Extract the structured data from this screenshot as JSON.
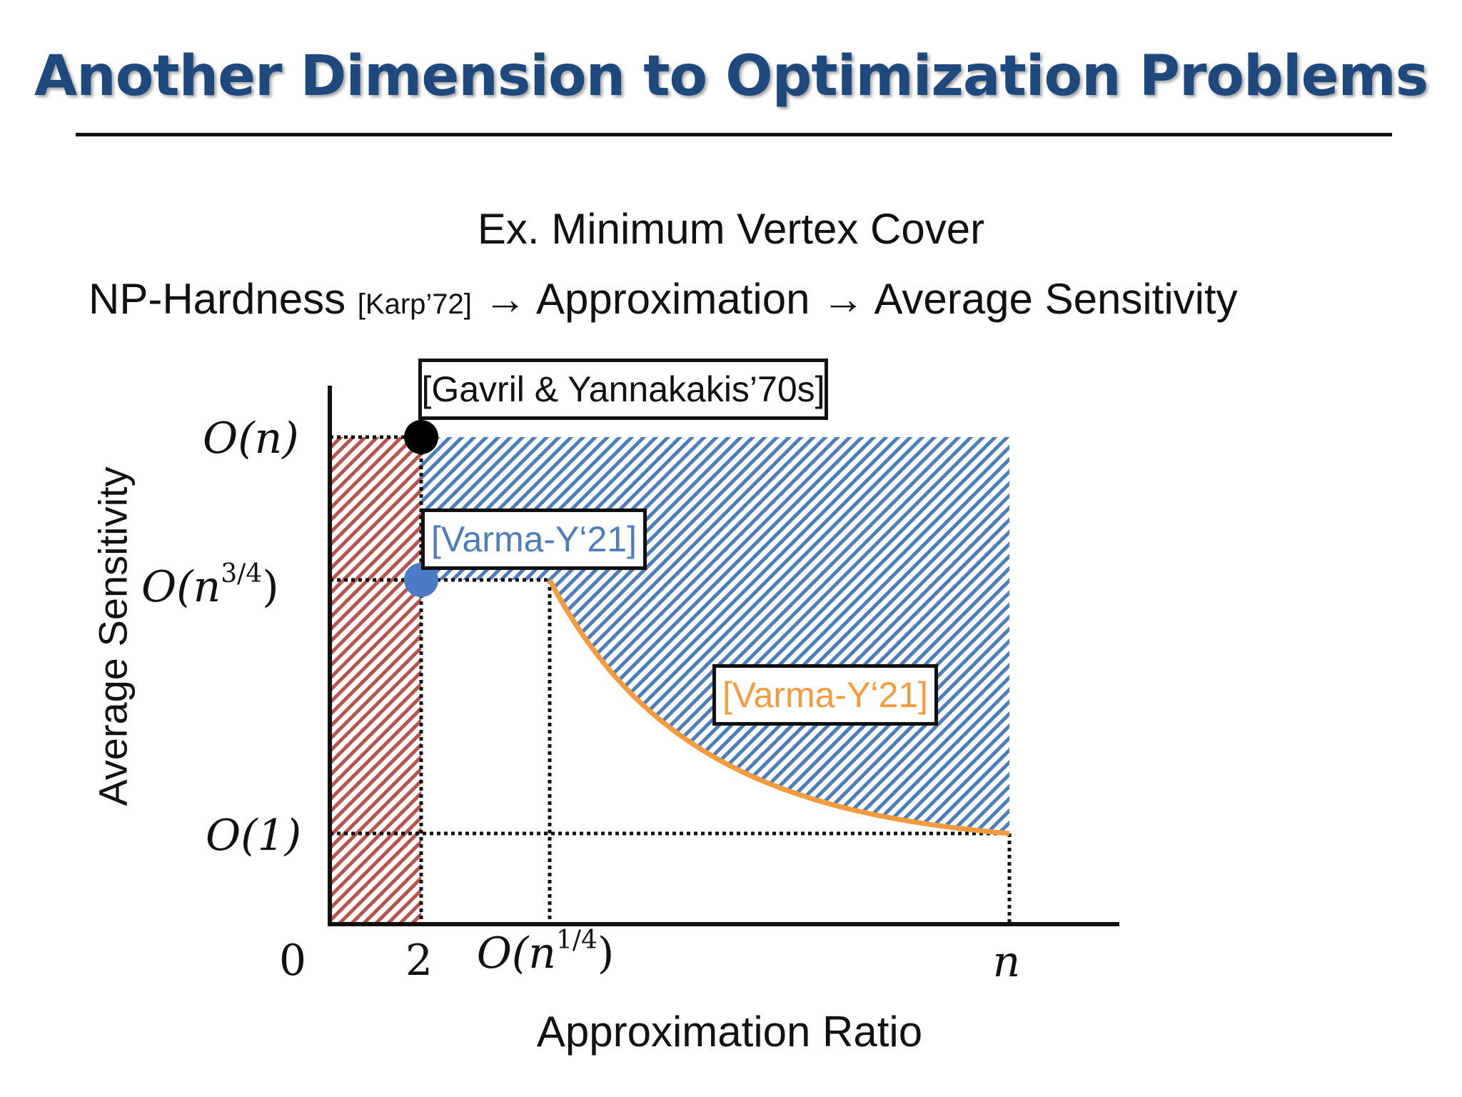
{
  "slide": {
    "title": "Another Dimension to Optimization Problems",
    "subtitle": "Ex. Minimum Vertex Cover",
    "chain": {
      "step1": "NP-Hardness",
      "step1_cite": "[Karp’72]",
      "arrow": "→",
      "step2": "Approximation",
      "step3": "Average Sensitivity"
    }
  },
  "diagram": {
    "x_axis_label": "Approximation Ratio",
    "y_axis_label": "Average Sensitivity",
    "x_ticks": {
      "zero": "0",
      "two": "2",
      "n14_base": "O(n",
      "n14_exp": "1/4",
      "n14_close": ")",
      "n": "n"
    },
    "y_ticks": {
      "on": "O(n)",
      "n34_base": "O(n",
      "n34_exp": "3/4",
      "n34_close": ")",
      "o1": "O(1)"
    },
    "callouts": {
      "gavril": "[Gavril & Yannakakis’70s]",
      "varma_blue": "[Varma-Y‘21]",
      "varma_orange": "[Varma-Y‘21]"
    },
    "colors": {
      "red_hatch": "#b85450",
      "blue_hatch": "#4f7dba",
      "orange_curve": "#f39c3f",
      "blue_point": "#4a7bc4",
      "black_point": "#000000",
      "title": "#1f497d"
    }
  }
}
